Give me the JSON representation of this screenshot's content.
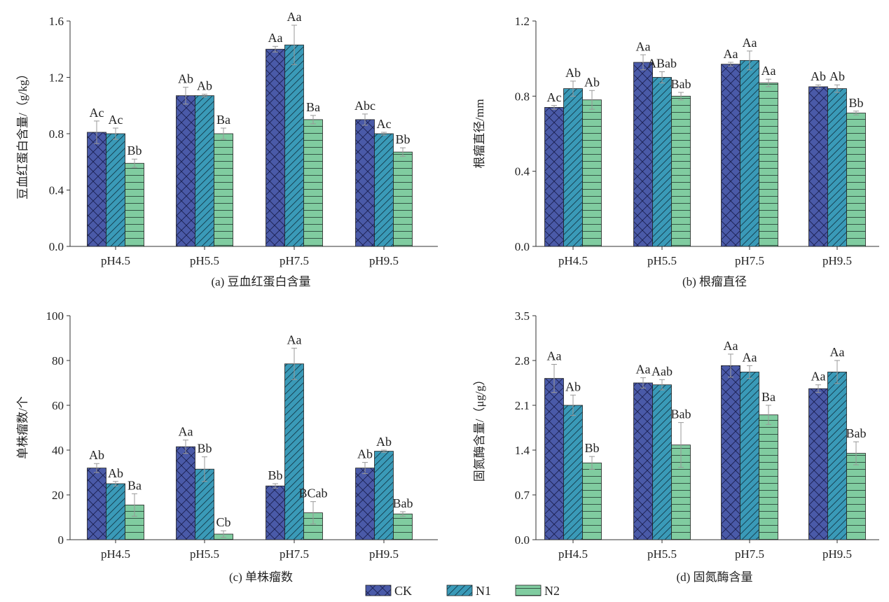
{
  "legend": [
    {
      "name": "CK",
      "color": "#4a5aa8",
      "pattern": "crosshatch"
    },
    {
      "name": "N1",
      "color": "#3a9ab8",
      "pattern": "diagonal"
    },
    {
      "name": "N2",
      "color": "#80cca0",
      "pattern": "horizontal"
    }
  ],
  "chart_data": [
    {
      "type": "bar",
      "title": "(a) 豆血红蛋白含量",
      "ylabel": "豆血红蛋白含量/（g/kg）",
      "xlabel": "",
      "categories": [
        "pH4.5",
        "pH5.5",
        "pH7.5",
        "pH9.5"
      ],
      "ylim": [
        0,
        1.6
      ],
      "yticks": [
        "0.0",
        "0.4",
        "0.8",
        "1.2",
        "1.6"
      ],
      "series": [
        {
          "name": "CK",
          "values": [
            0.81,
            1.07,
            1.4,
            0.9
          ],
          "errors": [
            0.08,
            0.06,
            0.02,
            0.04
          ],
          "labels": [
            "Ac",
            "Ab",
            "Aa",
            "Abc"
          ]
        },
        {
          "name": "N1",
          "values": [
            0.8,
            1.07,
            1.43,
            0.8
          ],
          "errors": [
            0.04,
            0.01,
            0.14,
            0.01
          ],
          "labels": [
            "Ac",
            "Ab",
            "Aa",
            "Ac"
          ]
        },
        {
          "name": "N2",
          "values": [
            0.59,
            0.8,
            0.9,
            0.67
          ],
          "errors": [
            0.03,
            0.04,
            0.03,
            0.03
          ],
          "labels": [
            "Bb",
            "Ba",
            "Ba",
            "Bb"
          ]
        }
      ]
    },
    {
      "type": "bar",
      "title": "(b) 根瘤直径",
      "ylabel": "根瘤直径/mm",
      "xlabel": "",
      "categories": [
        "pH4.5",
        "pH5.5",
        "pH7.5",
        "pH9.5"
      ],
      "ylim": [
        0,
        1.2
      ],
      "yticks": [
        "0.0",
        "0.4",
        "0.8",
        "1.2"
      ],
      "series": [
        {
          "name": "CK",
          "values": [
            0.74,
            0.98,
            0.97,
            0.85
          ],
          "errors": [
            0.01,
            0.04,
            0.01,
            0.01
          ],
          "labels": [
            "Ac",
            "Aa",
            "Aa",
            "Ab"
          ]
        },
        {
          "name": "N1",
          "values": [
            0.84,
            0.9,
            0.99,
            0.84
          ],
          "errors": [
            0.04,
            0.03,
            0.05,
            0.02
          ],
          "labels": [
            "Ab",
            "ABab",
            "Aa",
            "Ab"
          ]
        },
        {
          "name": "N2",
          "values": [
            0.78,
            0.8,
            0.87,
            0.71
          ],
          "errors": [
            0.05,
            0.02,
            0.02,
            0.01
          ],
          "labels": [
            "Ab",
            "Bab",
            "Aa",
            "Bb"
          ]
        }
      ]
    },
    {
      "type": "bar",
      "title": "(c) 单株瘤数",
      "ylabel": "单株瘤数/个",
      "xlabel": "",
      "categories": [
        "pH4.5",
        "pH5.5",
        "pH7.5",
        "pH9.5"
      ],
      "ylim": [
        0,
        100
      ],
      "yticks": [
        "0",
        "20",
        "40",
        "60",
        "80",
        "100"
      ],
      "series": [
        {
          "name": "CK",
          "values": [
            32,
            41.5,
            24,
            32
          ],
          "errors": [
            2,
            3,
            1,
            2.5
          ],
          "labels": [
            "Ab",
            "Aa",
            "Bb",
            "Ab"
          ]
        },
        {
          "name": "N1",
          "values": [
            25,
            31.5,
            78.5,
            39.5
          ],
          "errors": [
            1,
            5.5,
            7,
            0.5
          ],
          "labels": [
            "Ab",
            "Bb",
            "Aa",
            "Ab"
          ]
        },
        {
          "name": "N2",
          "values": [
            15.5,
            2.5,
            12,
            11.5
          ],
          "errors": [
            5,
            1.5,
            5,
            1
          ],
          "labels": [
            "Ba",
            "Cb",
            "BCab",
            "Bab"
          ]
        }
      ]
    },
    {
      "type": "bar",
      "title": "(d) 固氮酶含量",
      "ylabel": "固氮酶含量/（μg/g）",
      "xlabel": "",
      "categories": [
        "pH4.5",
        "pH5.5",
        "pH7.5",
        "pH9.5"
      ],
      "ylim": [
        0,
        3.5
      ],
      "yticks": [
        "0.0",
        "0.7",
        "1.4",
        "2.1",
        "2.8",
        "3.5"
      ],
      "series": [
        {
          "name": "CK",
          "values": [
            2.52,
            2.45,
            2.72,
            2.36
          ],
          "errors": [
            0.22,
            0.08,
            0.18,
            0.06
          ],
          "labels": [
            "Aa",
            "Aa",
            "Aa",
            "Aa"
          ]
        },
        {
          "name": "N1",
          "values": [
            2.1,
            2.42,
            2.62,
            2.62
          ],
          "errors": [
            0.16,
            0.08,
            0.1,
            0.18
          ],
          "labels": [
            "Ab",
            "Aab",
            "Aa",
            "Aa"
          ]
        },
        {
          "name": "N2",
          "values": [
            1.2,
            1.48,
            1.95,
            1.35
          ],
          "errors": [
            0.1,
            0.35,
            0.15,
            0.18
          ],
          "labels": [
            "Bb",
            "Bab",
            "Ba",
            "Bab"
          ]
        }
      ]
    }
  ]
}
